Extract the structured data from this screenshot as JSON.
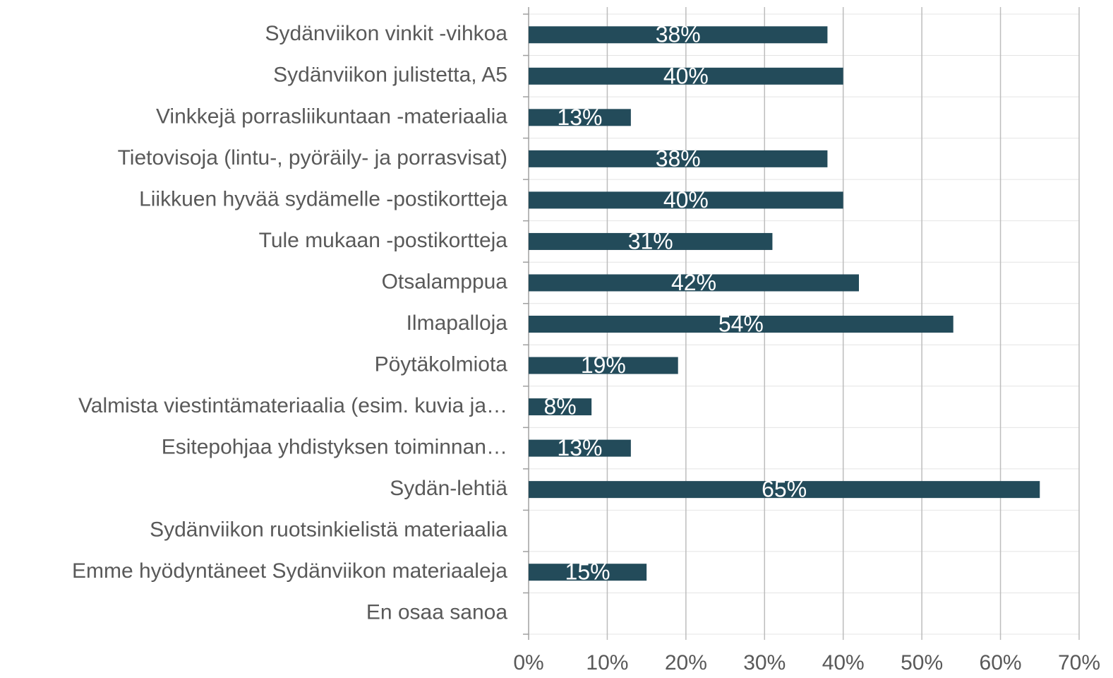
{
  "chart_data": {
    "type": "barh",
    "categories": [
      "Sydänviikon vinkit -vihkoa",
      "Sydänviikon julistetta, A5",
      "Vinkkejä porrasliikuntaan -materiaalia",
      "Tietovisoja (lintu-, pyöräily- ja porrasvisat)",
      "Liikkuen hyvää sydämelle -postikortteja",
      "Tule mukaan -postikortteja",
      "Otsalamppua",
      "Ilmapalloja",
      "Pöytäkolmiota",
      "Valmista viestintämateriaalia (esim. kuvia ja…",
      "Esitepohjaa yhdistyksen toiminnan…",
      "Sydän-lehtiä",
      "Sydänviikon ruotsinkielistä materiaalia",
      "Emme hyödyntäneet Sydänviikon materiaaleja",
      "En osaa sanoa"
    ],
    "values": [
      38,
      40,
      13,
      38,
      40,
      31,
      42,
      54,
      19,
      8,
      13,
      65,
      null,
      15,
      null
    ],
    "value_labels": [
      "38%",
      "40%",
      "13%",
      "38%",
      "40%",
      "31%",
      "42%",
      "54%",
      "19%",
      "8%",
      "13%",
      "65%",
      null,
      "15%",
      null
    ],
    "color": "#234b5a",
    "xlim": [
      0,
      70
    ],
    "xticks": [
      {
        "value": 0,
        "label": "0%"
      },
      {
        "value": 10,
        "label": "10%"
      },
      {
        "value": 20,
        "label": "20%"
      },
      {
        "value": 30,
        "label": "30%"
      },
      {
        "value": 40,
        "label": "40%"
      },
      {
        "value": 50,
        "label": "50%"
      },
      {
        "value": 60,
        "label": "60%"
      },
      {
        "value": 70,
        "label": "70%"
      }
    ],
    "grid": true
  }
}
